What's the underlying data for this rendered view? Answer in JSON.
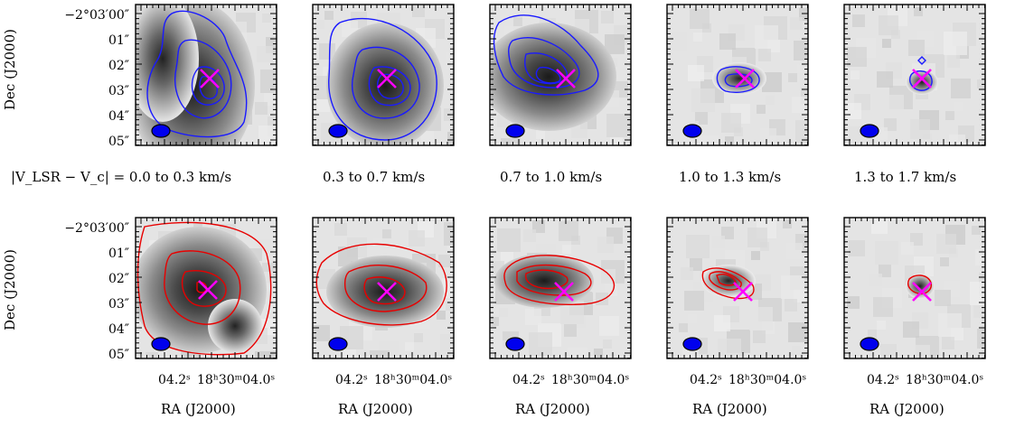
{
  "figure": {
    "y_axis_label": "Dec (J2000)",
    "x_axis_label": "RA (J2000)",
    "y_tick_labels": [
      "−2°03′00″",
      "01″",
      "02″",
      "03″",
      "04″",
      "05″"
    ],
    "x_tick_label_left": "04.2ˢ",
    "x_tick_label_right": "18ʰ30ᵐ04.0ˢ",
    "velocity_bins": [
      "|V_LSR − V_c| = 0.0 to 0.3 km/s",
      "0.3 to 0.7 km/s",
      "0.7 to 1.0 km/s",
      "1.0 to 1.3 km/s",
      "1.3 to 1.7 km/s"
    ]
  },
  "colors": {
    "blueshifted_contour": "#1a1aff",
    "redshifted_contour": "#e80000",
    "marker": "#ff00ff",
    "beam": "#0000ee"
  },
  "panel_rows": [
    "blueshifted",
    "redshifted"
  ],
  "marker_symbol": "×",
  "beam_symbol": "ellipse"
}
